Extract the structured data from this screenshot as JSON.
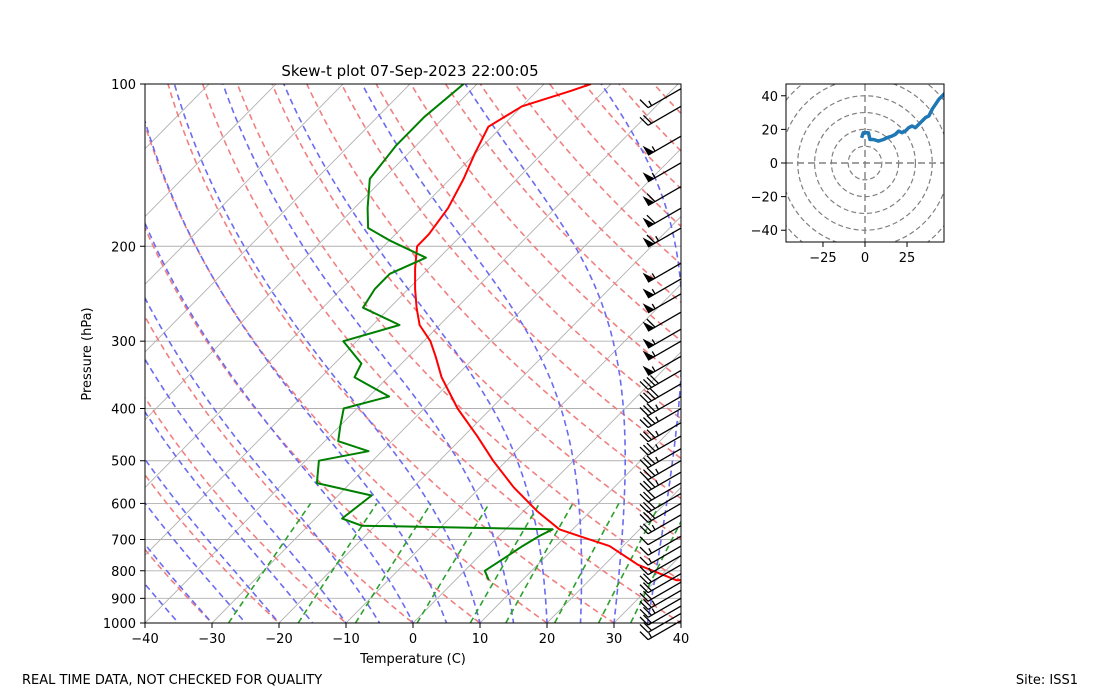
{
  "skewt": {
    "title": "Skew-t plot 07-Sep-2023 22:00:05",
    "xlabel": "Temperature (C)",
    "ylabel": "Pressure (hPa)",
    "xlim": [
      -40,
      40
    ],
    "ylim": [
      1000,
      100
    ],
    "x_ticks": [
      -40,
      -30,
      -20,
      -10,
      0,
      10,
      20,
      30,
      40
    ],
    "x_tick_labels": [
      "−40",
      "−30",
      "−20",
      "−10",
      "0",
      "10",
      "20",
      "30",
      "40"
    ],
    "y_ticks": [
      100,
      200,
      300,
      400,
      500,
      600,
      700,
      800,
      900,
      1000
    ],
    "y_tick_labels": [
      "100",
      "200",
      "300",
      "400",
      "500",
      "600",
      "700",
      "800",
      "900",
      "1000"
    ],
    "temperature_color": "#ff0000",
    "dewpoint_color": "#008000",
    "dry_adiabat_color": "#f08080",
    "moist_adiabat_color": "#6b6bf0",
    "mixing_ratio_color": "#2ca02c",
    "isotherm_color": "#b0b0b0"
  },
  "chart_data": [
    {
      "type": "line",
      "title": "Skew-t plot 07-Sep-2023 22:00:05",
      "xlabel": "Temperature (C)",
      "ylabel": "Pressure (hPa)",
      "xlim": [
        -40,
        40
      ],
      "ylim": [
        1000,
        100
      ],
      "series": [
        {
          "name": "Temperature",
          "pressure_hPa": [
            833,
            833,
            780,
            720,
            690,
            670,
            620,
            560,
            500,
            450,
            400,
            350,
            320,
            300,
            280,
            260,
            240,
            220,
            200,
            190,
            170,
            150,
            135,
            120,
            110,
            103,
            100
          ],
          "temp_C": [
            34,
            33,
            25,
            18,
            12,
            8,
            2,
            -5,
            -12,
            -18,
            -25,
            -32,
            -36,
            -39,
            -43,
            -46,
            -49,
            -52,
            -55,
            -55,
            -56,
            -58,
            -60,
            -62,
            -60,
            -55,
            -53
          ]
        },
        {
          "name": "Dewpoint",
          "pressure_hPa": [
            833,
            800,
            760,
            720,
            690,
            670,
            660,
            640,
            580,
            550,
            500,
            480,
            460,
            430,
            400,
            380,
            350,
            330,
            300,
            280,
            260,
            240,
            225,
            210,
            195,
            185,
            170,
            150,
            130,
            115,
            100
          ],
          "dewpoint_C": [
            5,
            3,
            4,
            5,
            6,
            7,
            -22,
            -26,
            -25,
            -35,
            -38,
            -32,
            -38,
            -40,
            -42,
            -37,
            -45,
            -46,
            -52,
            -46,
            -54,
            -55,
            -55,
            -52,
            -60,
            -65,
            -68,
            -72,
            -73,
            -73,
            -72
          ]
        }
      ],
      "barbs": [
        {
          "pressure_hPa": 990,
          "speed_kt": 15
        },
        {
          "pressure_hPa": 960,
          "speed_kt": 20
        },
        {
          "pressure_hPa": 930,
          "speed_kt": 20
        },
        {
          "pressure_hPa": 900,
          "speed_kt": 25
        },
        {
          "pressure_hPa": 870,
          "speed_kt": 25
        },
        {
          "pressure_hPa": 840,
          "speed_kt": 20
        },
        {
          "pressure_hPa": 810,
          "speed_kt": 20
        },
        {
          "pressure_hPa": 780,
          "speed_kt": 20
        },
        {
          "pressure_hPa": 750,
          "speed_kt": 15
        },
        {
          "pressure_hPa": 720,
          "speed_kt": 15
        },
        {
          "pressure_hPa": 690,
          "speed_kt": 15
        },
        {
          "pressure_hPa": 660,
          "speed_kt": 10
        },
        {
          "pressure_hPa": 630,
          "speed_kt": 25
        },
        {
          "pressure_hPa": 600,
          "speed_kt": 30
        },
        {
          "pressure_hPa": 575,
          "speed_kt": 30
        },
        {
          "pressure_hPa": 550,
          "speed_kt": 30
        },
        {
          "pressure_hPa": 525,
          "speed_kt": 35
        },
        {
          "pressure_hPa": 500,
          "speed_kt": 35
        },
        {
          "pressure_hPa": 475,
          "speed_kt": 35
        },
        {
          "pressure_hPa": 450,
          "speed_kt": 35
        },
        {
          "pressure_hPa": 425,
          "speed_kt": 35
        },
        {
          "pressure_hPa": 400,
          "speed_kt": 35
        },
        {
          "pressure_hPa": 380,
          "speed_kt": 35
        },
        {
          "pressure_hPa": 360,
          "speed_kt": 40
        },
        {
          "pressure_hPa": 340,
          "speed_kt": 40
        },
        {
          "pressure_hPa": 320,
          "speed_kt": 55
        },
        {
          "pressure_hPa": 300,
          "speed_kt": 55
        },
        {
          "pressure_hPa": 285,
          "speed_kt": 55
        },
        {
          "pressure_hPa": 265,
          "speed_kt": 60
        },
        {
          "pressure_hPa": 245,
          "speed_kt": 55
        },
        {
          "pressure_hPa": 230,
          "speed_kt": 55
        },
        {
          "pressure_hPa": 215,
          "speed_kt": 55
        },
        {
          "pressure_hPa": 185,
          "speed_kt": 65
        },
        {
          "pressure_hPa": 170,
          "speed_kt": 60
        },
        {
          "pressure_hPa": 155,
          "speed_kt": 60
        },
        {
          "pressure_hPa": 140,
          "speed_kt": 55
        },
        {
          "pressure_hPa": 125,
          "speed_kt": 55
        },
        {
          "pressure_hPa": 110,
          "speed_kt": 20
        },
        {
          "pressure_hPa": 102,
          "speed_kt": 15
        }
      ]
    },
    {
      "type": "line",
      "title": "",
      "xlim": [
        -47,
        47
      ],
      "ylim": [
        -47,
        47
      ],
      "x_ticks": [
        -25,
        0,
        25
      ],
      "y_ticks": [
        -40,
        -20,
        0,
        20,
        40
      ],
      "ring_radii": [
        10,
        20,
        30,
        40,
        50,
        60
      ],
      "series": [
        {
          "name": "Hodograph",
          "color": "#1f77b4",
          "u": [
            -2,
            -1,
            2,
            3,
            5,
            8,
            11,
            13,
            16,
            18,
            20,
            22,
            24,
            26,
            28,
            30,
            32,
            34,
            36,
            38,
            40,
            42,
            44,
            46,
            48
          ],
          "v": [
            15,
            18,
            18,
            14,
            14,
            13,
            14,
            15,
            16,
            17,
            19,
            18,
            19,
            21,
            22,
            21,
            23,
            25,
            27,
            28,
            32,
            35,
            38,
            40,
            42
          ]
        }
      ]
    }
  ],
  "hodograph": {
    "x_tick_labels": [
      "−25",
      "0",
      "25"
    ],
    "y_tick_labels": [
      "40",
      "20",
      "0",
      "−20",
      "−40"
    ],
    "line_color": "#1f77b4",
    "ring_color": "#808080"
  },
  "footer": {
    "left": "REAL TIME DATA, NOT CHECKED FOR QUALITY",
    "right": "Site: ISS1"
  }
}
